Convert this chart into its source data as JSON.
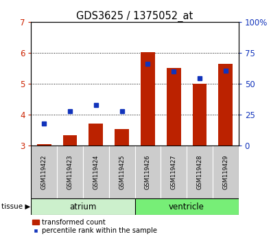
{
  "title": "GDS3625 / 1375052_at",
  "samples": [
    "GSM119422",
    "GSM119423",
    "GSM119424",
    "GSM119425",
    "GSM119426",
    "GSM119427",
    "GSM119428",
    "GSM119429"
  ],
  "atrium_indices": [
    0,
    1,
    2,
    3
  ],
  "ventricle_indices": [
    4,
    5,
    6,
    7
  ],
  "transformed_count": [
    3.05,
    3.35,
    3.72,
    3.55,
    6.03,
    5.52,
    5.0,
    5.65
  ],
  "percentile_rank_left": [
    3.72,
    4.12,
    4.32,
    4.12,
    5.65,
    5.4,
    5.18,
    5.42
  ],
  "bar_bottom": 3.0,
  "ylim_left": [
    3,
    7
  ],
  "ylim_right": [
    0,
    100
  ],
  "yticks_left": [
    3,
    4,
    5,
    6,
    7
  ],
  "yticks_right": [
    0,
    25,
    50,
    75,
    100
  ],
  "ytick_labels_right": [
    "0",
    "25",
    "50",
    "75",
    "100%"
  ],
  "bar_color": "#bb2200",
  "dot_color": "#1133bb",
  "bg_color": "#ffffff",
  "left_tick_color": "#cc2200",
  "right_tick_color": "#1133bb",
  "atrium_color": "#ccf0cc",
  "ventricle_color": "#77ee77",
  "sample_box_color": "#cccccc",
  "legend_bar_label": "transformed count",
  "legend_dot_label": "percentile rank within the sample",
  "tissue_label": "tissue",
  "figsize": [
    3.95,
    3.54
  ],
  "dpi": 100
}
